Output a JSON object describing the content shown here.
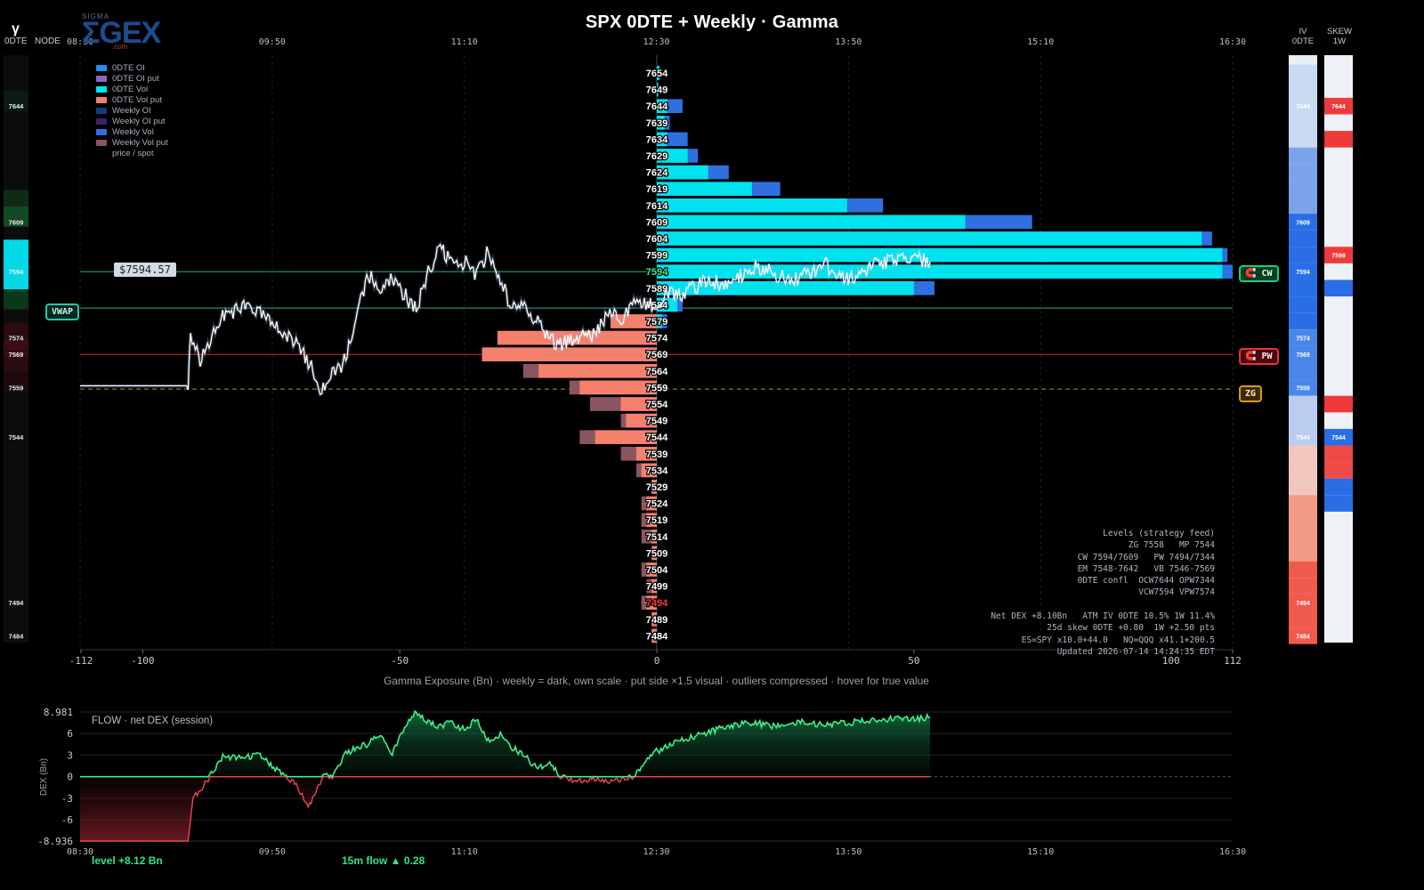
{
  "header": {
    "title": "SPX 0DTE + Weekly  ·  Gamma",
    "logo_small": "SIGMA",
    "logo_main": "ΣGEX",
    "logo_com": ".com",
    "gamma_symbol": "γ",
    "left_col_labels": [
      "0DTE",
      "NODE"
    ],
    "right_col_iv": "IV\n0DTE",
    "right_col_skew": "SKEW\n1W",
    "top_time_ticks": [
      "08:30",
      "09:50",
      "11:10",
      "12:30",
      "13:50",
      "15:10",
      "16:30"
    ]
  },
  "legend": [
    {
      "label": "0DTE OI",
      "color": "#1f8ef0"
    },
    {
      "label": "0DTE OI put",
      "color": "#8a66c2"
    },
    {
      "label": "0DTE Vol",
      "color": "#00e5f0"
    },
    {
      "label": "0DTE Vol put",
      "color": "#f5806c"
    },
    {
      "label": "Weekly OI",
      "color": "#133a80"
    },
    {
      "label": "Weekly OI put",
      "color": "#3a2568"
    },
    {
      "label": "Weekly Vol",
      "color": "#2f6fe0"
    },
    {
      "label": "Weekly Vol put",
      "color": "#8a5560"
    },
    {
      "label": "price / spot",
      "color": ""
    }
  ],
  "spot_label": "$7594.57",
  "badges": {
    "vwap": "VWAP",
    "cw": "🧲 CW",
    "pw": "🧲 PW",
    "zg": "ZG"
  },
  "levels_panel": [
    "Levels (strategy feed)",
    "ZG 7558   MP 7544",
    "CW 7594/7609   PW 7494/7344",
    "EM 7548-7642   VB 7546-7569",
    "0DTE confl  OCW7644 OPW7344",
    "VCW7594 VPW7574",
    "",
    "Net DEX +8.10Bn   ATM IV 0DTE 10.5% 1W 11.4%",
    "25d skew 0DTE +0.80  1W +2.50 pts",
    "ES=SPY x10.0+44.0   NQ=QQQ x41.1+200.5",
    "Updated 2026-07-14 14:24:35 EDT"
  ],
  "xaxis_main_label": "Gamma Exposure (Bn)  ·  weekly = dark, own scale  ·  put side ×1.5 visual  ·  outliers compressed · hover for true value",
  "flow": {
    "title": "FLOW · net DEX (session)",
    "ylabel": "DEX (Bn)",
    "ymax_label": "8.981",
    "ymin_label": "-8.936",
    "yticks": [
      6,
      3,
      0,
      -3,
      -6
    ],
    "level_text": "level +8.12 Bn",
    "flow_text": "15m flow ▲ 0.28"
  },
  "chart_data": [
    {
      "type": "bar",
      "title": "SPX 0DTE + Weekly  ·  Gamma",
      "xlabel": "Gamma Exposure (Bn)",
      "xlim": [
        -112,
        112
      ],
      "xticks": [
        -112,
        -100,
        -50,
        0,
        50,
        100,
        112
      ],
      "strikes": [
        7654,
        7649,
        7644,
        7639,
        7634,
        7629,
        7624,
        7619,
        7614,
        7609,
        7604,
        7599,
        7594,
        7589,
        7584,
        7579,
        7574,
        7569,
        7564,
        7559,
        7554,
        7549,
        7544,
        7539,
        7534,
        7529,
        7524,
        7519,
        7514,
        7509,
        7504,
        7499,
        7494,
        7489,
        7484
      ],
      "series": [
        {
          "name": "0DTE Vol",
          "values": [
            0.5,
            0.2,
            2,
            1.5,
            2,
            6,
            10,
            18.5,
            37,
            60,
            106,
            110,
            110,
            50,
            4,
            1,
            0,
            0,
            0,
            0,
            0,
            0,
            0,
            0,
            0,
            0,
            0,
            0,
            0,
            0,
            0,
            0,
            0,
            0,
            0
          ]
        },
        {
          "name": "Weekly Vol",
          "values": [
            0.5,
            0.3,
            5,
            2.5,
            6,
            8,
            14,
            24,
            44,
            73,
            108,
            111,
            112,
            54,
            5,
            2,
            0,
            0,
            0,
            0,
            0,
            0,
            0,
            0,
            0,
            0,
            0,
            0,
            0,
            0,
            0,
            0,
            0,
            0,
            0
          ]
        },
        {
          "name": "0DTE Vol put",
          "values": [
            0,
            0,
            0,
            0,
            0,
            0,
            0,
            0,
            0,
            0,
            0,
            0,
            0,
            0,
            0,
            -9,
            -31,
            -34,
            -23,
            -15,
            -7,
            -6,
            -12,
            -4,
            -3,
            -1,
            -2,
            -2,
            -1,
            -1,
            -2,
            -1,
            -2,
            -1,
            -1
          ]
        },
        {
          "name": "Weekly Vol put",
          "values": [
            0,
            0,
            0,
            0,
            0,
            0,
            0,
            0,
            0,
            0,
            0,
            0,
            0,
            0,
            0,
            -9,
            -31,
            -34,
            -26,
            -17,
            -13,
            -7,
            -15,
            -7,
            -4,
            -1,
            -3,
            -3,
            -3,
            -1,
            -3,
            -2,
            -3,
            -1,
            -1
          ]
        }
      ],
      "highlight_strikes": {
        "7594": "#3ef08a",
        "7494": "#ff3b3b"
      },
      "time_axis": [
        "08:30",
        "09:50",
        "11:10",
        "12:30",
        "13:50",
        "15:10",
        "16:30"
      ],
      "price_series": {
        "name": "price / spot",
        "times": [
          "08:30",
          "09:15",
          "09:16",
          "09:20",
          "09:30",
          "09:40",
          "09:50",
          "10:00",
          "10:05",
          "10:10",
          "10:20",
          "10:25",
          "10:30",
          "10:35",
          "10:40",
          "10:50",
          "10:55",
          "11:00",
          "11:05",
          "11:10",
          "11:15",
          "11:20",
          "11:25",
          "11:30",
          "11:35",
          "11:40",
          "11:45",
          "11:50",
          "12:00",
          "12:05",
          "12:10",
          "12:15",
          "12:20",
          "12:30",
          "12:35",
          "12:40",
          "12:50",
          "13:00",
          "13:10",
          "13:20",
          "13:30",
          "13:40",
          "13:50",
          "14:00",
          "14:05",
          "14:15",
          "14:24"
        ],
        "values": [
          7559.5,
          7559.5,
          7575,
          7567,
          7581,
          7584,
          7578,
          7572,
          7567,
          7558,
          7567,
          7580,
          7593,
          7588,
          7592,
          7582,
          7594,
          7601,
          7596,
          7597,
          7593,
          7600,
          7591,
          7583,
          7585,
          7579,
          7574,
          7572,
          7574,
          7575,
          7582,
          7579,
          7585,
          7584,
          7588,
          7587,
          7591,
          7590,
          7596,
          7593,
          7592,
          7596,
          7592,
          7596,
          7597,
          7598,
          7597
        ]
      },
      "reference_lines": [
        {
          "label": "CW",
          "value": 7594,
          "color": "#19d07a"
        },
        {
          "label": "VWAP",
          "value": 7583,
          "color": "#2ec4a6"
        },
        {
          "label": "PW",
          "value": 7569,
          "color": "#ee3040"
        },
        {
          "label": "ZG",
          "value": 7558,
          "color": "#d89b1a"
        }
      ],
      "left_node_labels": [
        7644,
        7609,
        7594,
        7574,
        7569,
        7559,
        7544,
        7494,
        7484
      ],
      "iv_labels": [
        7644,
        7609,
        7594,
        7574,
        7569,
        7559,
        7544,
        7494,
        7484
      ],
      "skew_labels": [
        7644,
        7599,
        7544
      ]
    },
    {
      "type": "area",
      "title": "FLOW · net DEX (session)",
      "ylabel": "DEX (Bn)",
      "ylim": [
        -8.936,
        8.981
      ],
      "yticks": [
        -6,
        -3,
        0,
        3,
        6
      ],
      "time_axis": [
        "08:30",
        "09:50",
        "11:10",
        "12:30",
        "13:50",
        "15:10",
        "16:30"
      ],
      "x": [
        "08:30",
        "09:15",
        "09:17",
        "09:20",
        "09:24",
        "09:30",
        "09:35",
        "09:45",
        "09:55",
        "10:00",
        "10:05",
        "10:10",
        "10:12",
        "10:15",
        "10:20",
        "10:25",
        "10:30",
        "10:35",
        "10:40",
        "10:45",
        "10:50",
        "10:55",
        "11:00",
        "11:05",
        "11:10",
        "11:15",
        "11:20",
        "11:25",
        "11:30",
        "11:35",
        "11:40",
        "11:45",
        "11:48",
        "11:50",
        "12:00",
        "12:05",
        "12:10",
        "12:15",
        "12:20",
        "12:25",
        "12:30",
        "12:40",
        "12:50",
        "13:00",
        "13:10",
        "13:20",
        "13:30",
        "13:40",
        "13:50",
        "14:00",
        "14:10",
        "14:15",
        "14:24"
      ],
      "values": [
        -8.936,
        -8.936,
        -3,
        -2,
        0,
        3,
        2.5,
        3,
        0,
        -1,
        -4.5,
        -1,
        0.5,
        -0.3,
        3,
        4,
        4.5,
        6,
        3,
        7,
        9,
        7.5,
        7,
        7.5,
        6.5,
        8,
        5,
        6,
        4,
        3,
        1.2,
        1.8,
        1,
        0.1,
        -0.8,
        -0.3,
        -0.5,
        -0.3,
        0,
        2,
        3.5,
        5,
        6,
        7,
        7.5,
        7,
        7.6,
        7.2,
        7.5,
        7.8,
        8,
        8.1,
        8.2
      ]
    }
  ]
}
